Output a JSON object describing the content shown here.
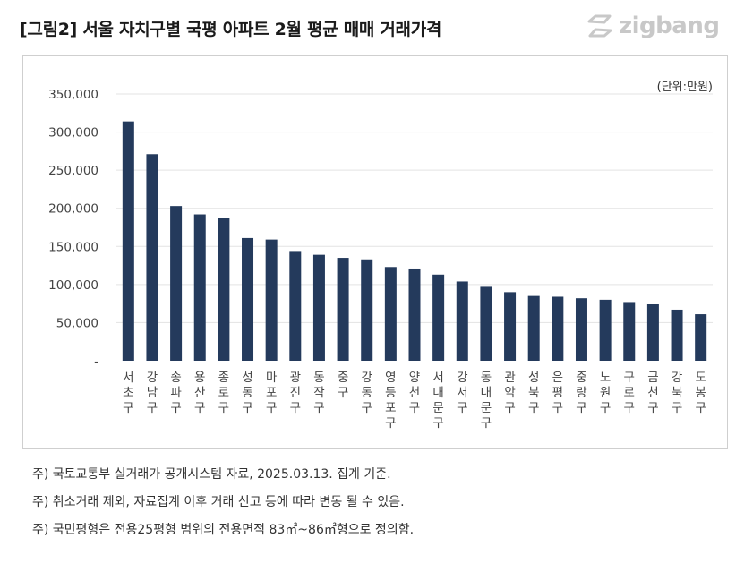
{
  "header": {
    "title": "[그림2] 서울 자치구별 국평 아파트 2월 평균 매매 거래가격",
    "logo_text": "zigbang",
    "logo_icon": "zigbang-logo-icon"
  },
  "colors": {
    "bar": "#243a5c",
    "grid": "#e3e3e3",
    "axis_text": "#444444",
    "logo": "#c8c8c8"
  },
  "chart_data": {
    "type": "bar",
    "unit_label": "(단위:만원)",
    "ylim": [
      0,
      350000
    ],
    "yticks": [
      0,
      50000,
      100000,
      150000,
      200000,
      250000,
      300000,
      350000
    ],
    "ytick_labels": [
      "-",
      "50,000",
      "100,000",
      "150,000",
      "200,000",
      "250,000",
      "300,000",
      "350,000"
    ],
    "grid": true,
    "categories": [
      "서초구",
      "강남구",
      "송파구",
      "용산구",
      "종로구",
      "성동구",
      "마포구",
      "광진구",
      "동작구",
      "중구",
      "강동구",
      "영등포구",
      "양천구",
      "서대문구",
      "강서구",
      "동대문구",
      "관악구",
      "성북구",
      "은평구",
      "중랑구",
      "노원구",
      "구로구",
      "금천구",
      "강북구",
      "도봉구"
    ],
    "values": [
      314000,
      271000,
      203000,
      192000,
      187000,
      161000,
      159000,
      144000,
      139000,
      135000,
      133000,
      123000,
      121000,
      113000,
      104000,
      97000,
      90000,
      85000,
      84000,
      82000,
      80000,
      77000,
      74000,
      67000,
      61000
    ]
  },
  "notes": [
    "주) 국토교통부 실거래가 공개시스템 자료, 2025.03.13. 집계 기준.",
    "주) 취소거래 제외, 자료집계 이후 거래 신고 등에 따라 변동 될 수 있음.",
    "주) 국민평형은 전용25평형 범위의 전용면적 83㎡~86㎡형으로 정의함."
  ]
}
